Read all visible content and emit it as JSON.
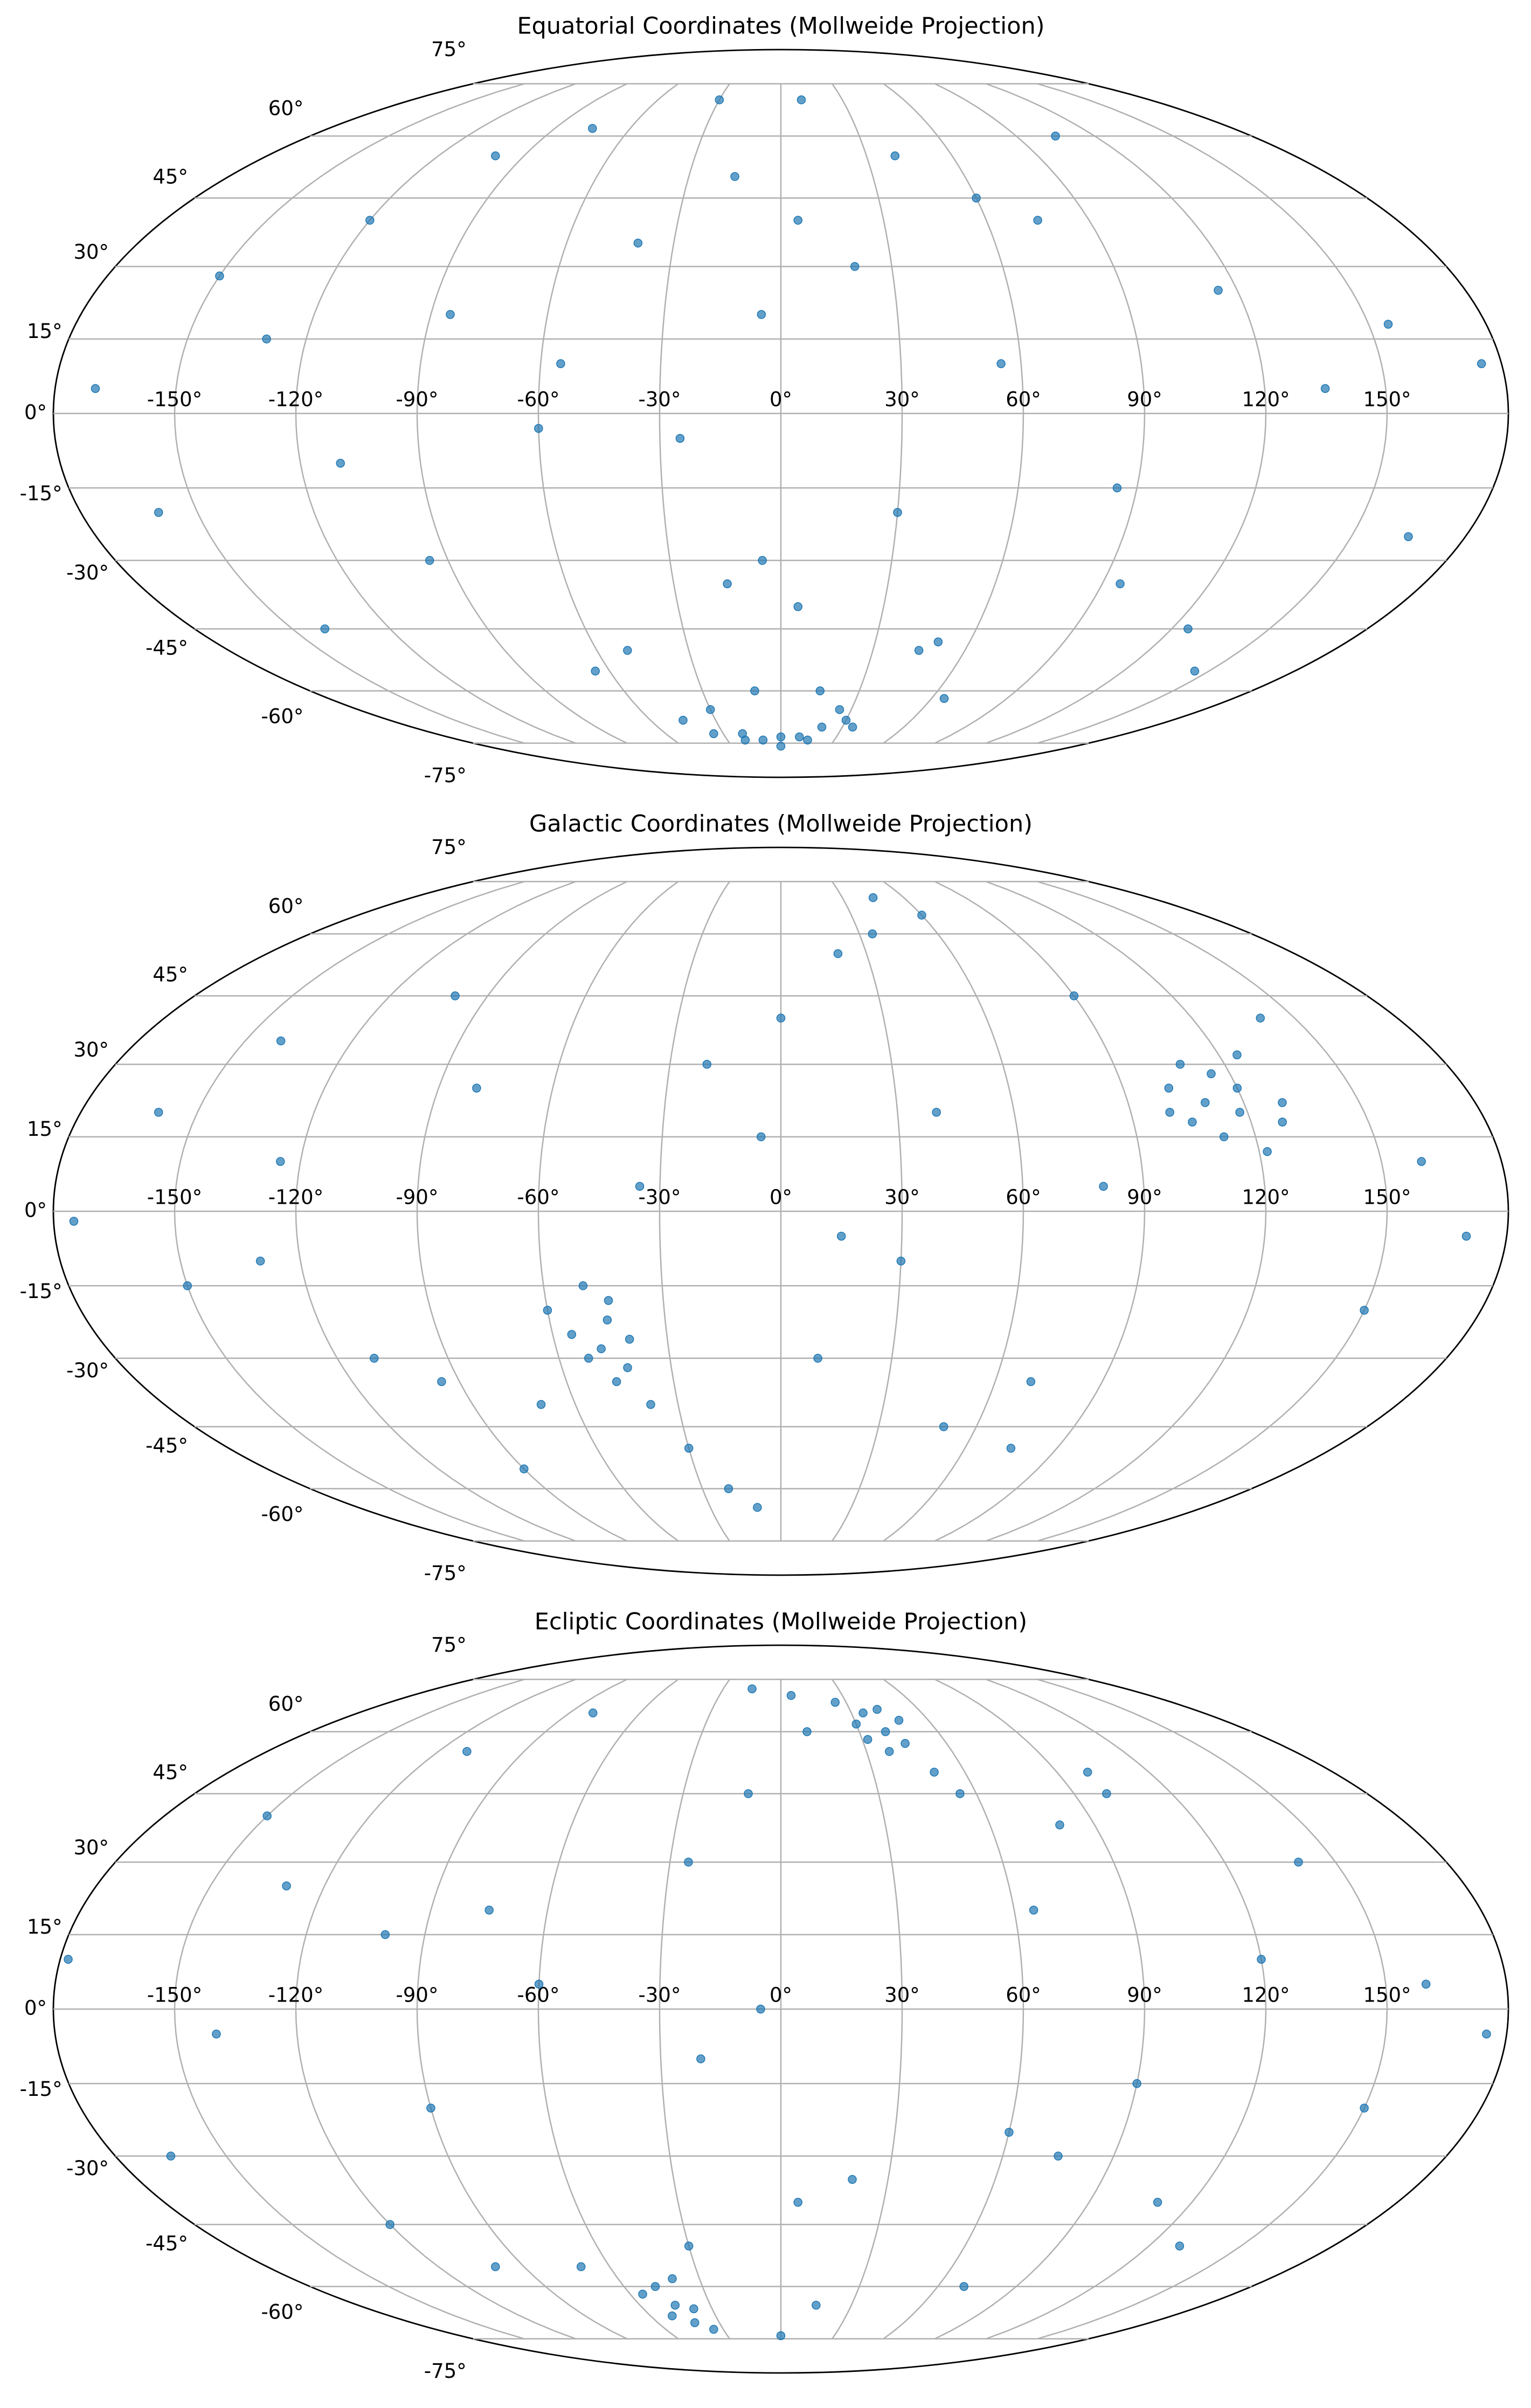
{
  "chart_data": [
    {
      "type": "scatter",
      "projection": "mollweide",
      "title": "Equatorial Coordinates (Mollweide Projection)",
      "color": "#1f77b4",
      "grid": true,
      "xlim": [
        -180,
        180
      ],
      "ylim": [
        -90,
        90
      ],
      "xticks": [
        {
          "value": -150,
          "label": "-150°"
        },
        {
          "value": -120,
          "label": "-120°"
        },
        {
          "value": -90,
          "label": "-90°"
        },
        {
          "value": -60,
          "label": "-60°"
        },
        {
          "value": -30,
          "label": "-30°"
        },
        {
          "value": 0,
          "label": "0°"
        },
        {
          "value": 30,
          "label": "30°"
        },
        {
          "value": 60,
          "label": "60°"
        },
        {
          "value": 90,
          "label": "90°"
        },
        {
          "value": 120,
          "label": "120°"
        },
        {
          "value": 150,
          "label": "150°"
        }
      ],
      "yticks": [
        {
          "value": -75,
          "label": "-75°"
        },
        {
          "value": -60,
          "label": "-60°"
        },
        {
          "value": -45,
          "label": "-45°"
        },
        {
          "value": -30,
          "label": "-30°"
        },
        {
          "value": -15,
          "label": "-15°"
        },
        {
          "value": 0,
          "label": "0°"
        },
        {
          "value": 15,
          "label": "15°"
        },
        {
          "value": 30,
          "label": "30°"
        },
        {
          "value": 45,
          "label": "45°"
        },
        {
          "value": 60,
          "label": "60°"
        },
        {
          "value": 75,
          "label": "75°"
        }
      ],
      "x": [
        -170,
        -160,
        -150,
        -140,
        -130,
        -120,
        -110,
        -100,
        -95,
        -85,
        -75,
        -65,
        -55,
        -45,
        -40,
        -35,
        -30,
        -25,
        -20,
        -15,
        -10,
        -5,
        0,
        5,
        10,
        15,
        20,
        25,
        30,
        35,
        40,
        45,
        55,
        65,
        75,
        85,
        95,
        105,
        115,
        125,
        135,
        145,
        155,
        165,
        175,
        -20,
        -10,
        0,
        10,
        20,
        -30,
        30,
        -50,
        50,
        -60,
        60,
        -15,
        15,
        5,
        -5
      ],
      "y": [
        5,
        -20,
        28,
        -45,
        15,
        40,
        -10,
        55,
        -30,
        20,
        62,
        -55,
        10,
        -68,
        35,
        -72,
        70,
        -5,
        -74,
        50,
        -60,
        20,
        -73,
        -40,
        70,
        -74,
        30,
        -65,
        -20,
        -70,
        55,
        -50,
        10,
        -62,
        40,
        -15,
        -35,
        60,
        25,
        -45,
        5,
        -55,
        18,
        -25,
        10,
        -72,
        -74,
        -76,
        -73,
        -70,
        -65,
        -68,
        -50,
        -48,
        -3,
        45,
        -35,
        -60,
        40,
        -30
      ]
    },
    {
      "type": "scatter",
      "projection": "mollweide",
      "title": "Galactic Coordinates (Mollweide Projection)",
      "color": "#1f77b4",
      "grid": true,
      "xlim": [
        -180,
        180
      ],
      "ylim": [
        -90,
        90
      ],
      "xticks": [
        {
          "value": -150,
          "label": "-150°"
        },
        {
          "value": -120,
          "label": "-120°"
        },
        {
          "value": -90,
          "label": "-90°"
        },
        {
          "value": -60,
          "label": "-60°"
        },
        {
          "value": -30,
          "label": "-30°"
        },
        {
          "value": 0,
          "label": "0°"
        },
        {
          "value": 30,
          "label": "30°"
        },
        {
          "value": 60,
          "label": "60°"
        },
        {
          "value": 90,
          "label": "90°"
        },
        {
          "value": 120,
          "label": "120°"
        },
        {
          "value": 150,
          "label": "150°"
        }
      ],
      "yticks": [
        {
          "value": -75,
          "label": "-75°"
        },
        {
          "value": -60,
          "label": "-60°"
        },
        {
          "value": -45,
          "label": "-45°"
        },
        {
          "value": -30,
          "label": "-30°"
        },
        {
          "value": -15,
          "label": "-15°"
        },
        {
          "value": 0,
          "label": "0°"
        },
        {
          "value": 15,
          "label": "15°"
        },
        {
          "value": 30,
          "label": "30°"
        },
        {
          "value": 45,
          "label": "45°"
        },
        {
          "value": 60,
          "label": "60°"
        },
        {
          "value": 75,
          "label": "75°"
        }
      ],
      "x": [
        -175,
        -160,
        -150,
        -140,
        -125,
        -110,
        -100,
        -90,
        -80,
        -70,
        -60,
        -55,
        -52,
        -50,
        -48,
        -46,
        -45,
        -44,
        -42,
        -40,
        -38,
        -35,
        -30,
        -20,
        -10,
        0,
        10,
        20,
        30,
        40,
        50,
        60,
        70,
        80,
        90,
        100,
        102,
        105,
        108,
        110,
        112,
        115,
        118,
        120,
        122,
        125,
        128,
        130,
        140,
        150,
        160,
        170,
        -130,
        -95,
        -20,
        15,
        45,
        75,
        -5,
        35
      ],
      "y": [
        -2,
        20,
        -15,
        35,
        10,
        -30,
        45,
        -55,
        25,
        -40,
        -20,
        -25,
        -30,
        -15,
        -28,
        -35,
        -22,
        -18,
        -32,
        -26,
        -40,
        5,
        -50,
        30,
        -65,
        40,
        -30,
        55,
        -10,
        20,
        -45,
        65,
        -35,
        5,
        45,
        20,
        25,
        18,
        30,
        22,
        15,
        28,
        20,
        25,
        12,
        32,
        18,
        22,
        40,
        -20,
        10,
        -5,
        -10,
        -35,
        -60,
        -5,
        70,
        -50,
        15,
        60
      ]
    },
    {
      "type": "scatter",
      "projection": "mollweide",
      "title": "Ecliptic Coordinates (Mollweide Projection)",
      "color": "#1f77b4",
      "grid": true,
      "xlim": [
        -180,
        180
      ],
      "ylim": [
        -90,
        90
      ],
      "xticks": [
        {
          "value": -150,
          "label": "-150°"
        },
        {
          "value": -120,
          "label": "-120°"
        },
        {
          "value": -90,
          "label": "-90°"
        },
        {
          "value": -60,
          "label": "-60°"
        },
        {
          "value": -30,
          "label": "-30°"
        },
        {
          "value": 0,
          "label": "0°"
        },
        {
          "value": 30,
          "label": "30°"
        },
        {
          "value": 60,
          "label": "60°"
        },
        {
          "value": 90,
          "label": "90°"
        },
        {
          "value": 120,
          "label": "120°"
        },
        {
          "value": 150,
          "label": "150°"
        }
      ],
      "yticks": [
        {
          "value": -75,
          "label": "-75°"
        },
        {
          "value": -60,
          "label": "-60°"
        },
        {
          "value": -45,
          "label": "-45°"
        },
        {
          "value": -30,
          "label": "-30°"
        },
        {
          "value": -15,
          "label": "-15°"
        },
        {
          "value": 0,
          "label": "0°"
        },
        {
          "value": 15,
          "label": "15°"
        },
        {
          "value": 30,
          "label": "30°"
        },
        {
          "value": 45,
          "label": "45°"
        },
        {
          "value": 60,
          "label": "60°"
        },
        {
          "value": 75,
          "label": "75°"
        }
      ],
      "x": [
        -178,
        -165,
        -150,
        -140,
        -130,
        -120,
        -110,
        -100,
        -90,
        -80,
        -70,
        -60,
        -55,
        -50,
        -48,
        -45,
        -42,
        -40,
        -38,
        -35,
        -30,
        -25,
        -20,
        -10,
        0,
        5,
        10,
        20,
        25,
        30,
        32,
        35,
        38,
        40,
        42,
        45,
        48,
        50,
        55,
        60,
        65,
        70,
        80,
        90,
        100,
        110,
        120,
        130,
        140,
        150,
        160,
        175,
        -15,
        15,
        -75,
        75,
        -100,
        100,
        -5,
        5
      ],
      "y": [
        10,
        -30,
        40,
        -5,
        25,
        -45,
        55,
        15,
        -20,
        65,
        -55,
        5,
        -62,
        -68,
        -60,
        -65,
        -70,
        -58,
        -66,
        -72,
        -50,
        30,
        -10,
        45,
        -74,
        70,
        60,
        -35,
        68,
        62,
        58,
        65,
        55,
        60,
        66,
        57,
        63,
        50,
        45,
        -25,
        20,
        -60,
        38,
        -15,
        50,
        -40,
        10,
        -50,
        30,
        -20,
        5,
        -5,
        72,
        -65,
        20,
        -30,
        -55,
        45,
        0,
        -40
      ]
    }
  ]
}
